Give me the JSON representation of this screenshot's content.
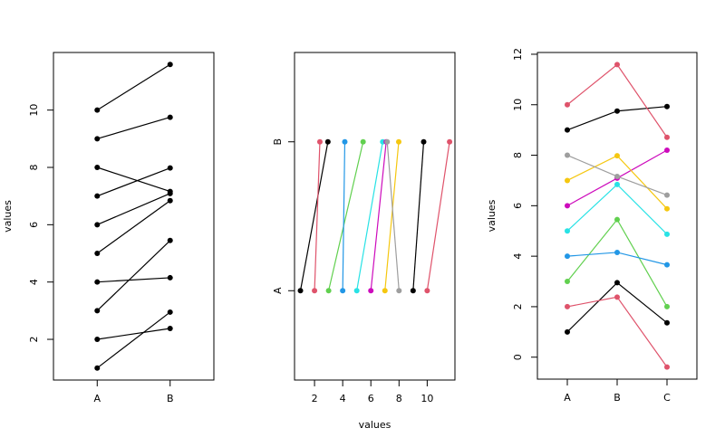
{
  "chart_data": [
    {
      "type": "line",
      "categories": [
        "A",
        "B"
      ],
      "ylabel": "values",
      "ylim": [
        0.58,
        12.01
      ],
      "yticks": [
        2,
        4,
        6,
        8,
        10
      ],
      "series": [
        {
          "color": "#000000",
          "values": [
            1,
            2.95
          ]
        },
        {
          "color": "#000000",
          "values": [
            2,
            2.38
          ]
        },
        {
          "color": "#000000",
          "values": [
            3,
            5.45
          ]
        },
        {
          "color": "#000000",
          "values": [
            4,
            4.15
          ]
        },
        {
          "color": "#000000",
          "values": [
            5,
            6.84
          ]
        },
        {
          "color": "#000000",
          "values": [
            6,
            7.09
          ]
        },
        {
          "color": "#000000",
          "values": [
            7,
            7.98
          ]
        },
        {
          "color": "#000000",
          "values": [
            8,
            7.16
          ]
        },
        {
          "color": "#000000",
          "values": [
            9,
            9.75
          ]
        },
        {
          "color": "#000000",
          "values": [
            10,
            11.59
          ]
        }
      ]
    },
    {
      "type": "line",
      "horizontal": true,
      "categories": [
        "A",
        "B"
      ],
      "xlabel": "values",
      "xlim": [
        0.58,
        11.97
      ],
      "xticks": [
        2,
        4,
        6,
        8,
        10
      ],
      "series": [
        {
          "color": "#000000",
          "values": [
            1,
            2.95
          ]
        },
        {
          "color": "#DF536B",
          "values": [
            2,
            2.38
          ]
        },
        {
          "color": "#61D04F",
          "values": [
            3,
            5.45
          ]
        },
        {
          "color": "#2297E6",
          "values": [
            4,
            4.15
          ]
        },
        {
          "color": "#28E2E5",
          "values": [
            5,
            6.84
          ]
        },
        {
          "color": "#CD0BBC",
          "values": [
            6,
            7.09
          ]
        },
        {
          "color": "#F5C710",
          "values": [
            7,
            7.98
          ]
        },
        {
          "color": "#9E9E9E",
          "values": [
            8,
            7.16
          ]
        },
        {
          "color": "#000000",
          "values": [
            9,
            9.75
          ]
        },
        {
          "color": "#DF536B",
          "values": [
            10,
            11.59
          ]
        }
      ]
    },
    {
      "type": "line",
      "categories": [
        "A",
        "B",
        "C"
      ],
      "ylabel": "values",
      "ylim": [
        -0.87,
        12.07
      ],
      "yticks": [
        0,
        2,
        4,
        6,
        8,
        10,
        12
      ],
      "series": [
        {
          "color": "#000000",
          "values": [
            1,
            2.95,
            1.36
          ]
        },
        {
          "color": "#DF536B",
          "values": [
            2,
            2.38,
            -0.39
          ]
        },
        {
          "color": "#61D04F",
          "values": [
            3,
            5.45,
            2.0
          ]
        },
        {
          "color": "#2297E6",
          "values": [
            4,
            4.15,
            3.66
          ]
        },
        {
          "color": "#28E2E5",
          "values": [
            5,
            6.84,
            4.87
          ]
        },
        {
          "color": "#CD0BBC",
          "values": [
            6,
            7.09,
            8.2
          ]
        },
        {
          "color": "#F5C710",
          "values": [
            7,
            7.98,
            5.88
          ]
        },
        {
          "color": "#9E9E9E",
          "values": [
            8,
            7.16,
            6.42
          ]
        },
        {
          "color": "#000000",
          "values": [
            9,
            9.75,
            9.93
          ]
        },
        {
          "color": "#DF536B",
          "values": [
            10,
            11.59,
            8.71
          ]
        }
      ]
    }
  ]
}
